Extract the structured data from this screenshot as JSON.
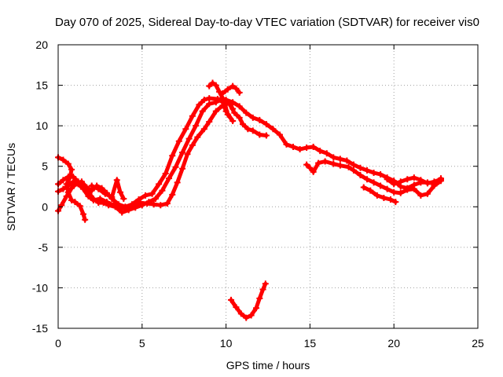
{
  "chart_data": {
    "type": "scatter",
    "title": "Day 070 of 2025, Sidereal Day-to-day VTEC variation (SDTVAR) for receiver vis0",
    "xlabel": "GPS time / hours",
    "ylabel": "SDTVAR / TECUs",
    "xlim": [
      0,
      25
    ],
    "ylim": [
      -15,
      20
    ],
    "xticks": [
      0,
      5,
      10,
      15,
      20,
      25
    ],
    "yticks": [
      -15,
      -10,
      -5,
      0,
      5,
      10,
      15,
      20
    ],
    "grid": true,
    "legend": "none",
    "marker": "plus",
    "color": "#ff0000",
    "series": [
      {
        "name": "trace-1",
        "points": [
          [
            0.0,
            6.1
          ],
          [
            0.3,
            5.8
          ],
          [
            0.6,
            5.3
          ],
          [
            0.8,
            4.6
          ],
          [
            0.7,
            3.6
          ],
          [
            0.5,
            2.8
          ],
          [
            0.6,
            1.8
          ],
          [
            0.8,
            0.8
          ],
          [
            1.0,
            0.6
          ],
          [
            1.3,
            0.1
          ],
          [
            1.5,
            -0.9
          ],
          [
            1.6,
            -1.6
          ]
        ]
      },
      {
        "name": "trace-2",
        "points": [
          [
            0.0,
            -0.5
          ],
          [
            0.2,
            0.2
          ],
          [
            0.5,
            1.3
          ],
          [
            0.8,
            2.3
          ],
          [
            1.1,
            2.9
          ],
          [
            1.4,
            3.1
          ],
          [
            1.7,
            2.4
          ],
          [
            2.0,
            2.0
          ],
          [
            2.3,
            2.6
          ],
          [
            2.6,
            2.3
          ],
          [
            2.9,
            1.7
          ],
          [
            3.2,
            1.0
          ],
          [
            3.6,
            0.3
          ],
          [
            4.0,
            0.0
          ],
          [
            4.4,
            0.3
          ],
          [
            4.8,
            0.9
          ],
          [
            5.2,
            1.4
          ],
          [
            5.6,
            1.6
          ],
          [
            6.0,
            2.8
          ],
          [
            6.4,
            4.1
          ],
          [
            6.8,
            6.3
          ],
          [
            7.2,
            8.1
          ],
          [
            7.6,
            9.6
          ],
          [
            8.0,
            11.2
          ],
          [
            8.4,
            12.6
          ],
          [
            8.7,
            13.2
          ],
          [
            9.0,
            13.4
          ],
          [
            9.5,
            13.3
          ],
          [
            10.0,
            13.2
          ],
          [
            10.4,
            12.9
          ],
          [
            10.8,
            12.4
          ],
          [
            11.2,
            11.6
          ],
          [
            11.6,
            11.0
          ],
          [
            12.0,
            10.7
          ],
          [
            12.4,
            10.2
          ],
          [
            12.8,
            9.6
          ],
          [
            13.2,
            8.9
          ],
          [
            13.6,
            7.7
          ],
          [
            14.0,
            7.4
          ],
          [
            14.4,
            7.1
          ],
          [
            14.8,
            7.3
          ],
          [
            15.2,
            7.4
          ],
          [
            15.6,
            6.9
          ],
          [
            16.0,
            6.6
          ],
          [
            16.4,
            6.1
          ],
          [
            16.8,
            5.9
          ],
          [
            17.2,
            5.7
          ],
          [
            17.6,
            5.2
          ],
          [
            18.0,
            4.8
          ],
          [
            18.4,
            4.5
          ],
          [
            18.8,
            4.2
          ],
          [
            19.2,
            4.0
          ],
          [
            19.6,
            3.6
          ],
          [
            20.0,
            3.2
          ],
          [
            20.4,
            2.5
          ],
          [
            20.8,
            2.3
          ],
          [
            21.2,
            2.7
          ],
          [
            21.6,
            3.0
          ],
          [
            22.0,
            3.0
          ],
          [
            22.4,
            2.9
          ],
          [
            22.8,
            3.5
          ]
        ]
      },
      {
        "name": "trace-3",
        "points": [
          [
            0.0,
            2.8
          ],
          [
            0.3,
            3.3
          ],
          [
            0.6,
            3.7
          ],
          [
            0.9,
            3.7
          ],
          [
            1.2,
            3.1
          ],
          [
            1.5,
            2.5
          ],
          [
            1.8,
            1.8
          ],
          [
            2.1,
            1.0
          ],
          [
            2.4,
            0.5
          ],
          [
            2.7,
            0.5
          ],
          [
            3.0,
            0.2
          ],
          [
            3.4,
            0.0
          ],
          [
            3.8,
            -0.7
          ],
          [
            4.2,
            -0.4
          ],
          [
            4.6,
            -0.1
          ],
          [
            5.0,
            0.2
          ],
          [
            5.4,
            0.6
          ],
          [
            5.8,
            1.0
          ],
          [
            6.2,
            2.0
          ],
          [
            6.6,
            3.5
          ],
          [
            7.0,
            4.9
          ],
          [
            7.4,
            6.7
          ],
          [
            7.8,
            8.4
          ],
          [
            8.2,
            10.0
          ],
          [
            8.6,
            11.8
          ],
          [
            9.0,
            12.7
          ],
          [
            9.4,
            12.9
          ],
          [
            9.8,
            13.4
          ],
          [
            10.2,
            12.7
          ],
          [
            10.5,
            11.6
          ],
          [
            10.8,
            11.0
          ],
          [
            11.0,
            10.2
          ],
          [
            11.3,
            9.6
          ],
          [
            11.6,
            9.4
          ],
          [
            12.0,
            8.9
          ],
          [
            12.4,
            8.8
          ]
        ]
      },
      {
        "name": "trace-4",
        "points": [
          [
            0.0,
            1.9
          ],
          [
            0.3,
            2.2
          ],
          [
            0.6,
            2.6
          ],
          [
            0.9,
            3.1
          ],
          [
            1.2,
            2.8
          ],
          [
            1.5,
            2.2
          ],
          [
            1.8,
            1.3
          ],
          [
            2.1,
            0.8
          ],
          [
            2.5,
            1.0
          ],
          [
            2.9,
            0.6
          ],
          [
            3.3,
            0.2
          ],
          [
            3.7,
            -0.2
          ],
          [
            4.1,
            -0.1
          ],
          [
            4.5,
            0.2
          ],
          [
            4.9,
            0.5
          ],
          [
            5.3,
            0.4
          ],
          [
            5.7,
            0.3
          ],
          [
            6.1,
            0.2
          ],
          [
            6.5,
            0.4
          ],
          [
            6.8,
            1.5
          ],
          [
            7.1,
            3.0
          ],
          [
            7.4,
            4.7
          ],
          [
            7.7,
            6.5
          ],
          [
            8.0,
            7.6
          ],
          [
            8.3,
            8.6
          ],
          [
            8.7,
            9.6
          ],
          [
            9.0,
            10.5
          ],
          [
            9.4,
            11.8
          ],
          [
            9.8,
            12.5
          ],
          [
            10.2,
            12.8
          ],
          [
            10.4,
            12.1
          ]
        ]
      },
      {
        "name": "trace-5",
        "points": [
          [
            9.0,
            14.9
          ],
          [
            9.2,
            15.3
          ],
          [
            9.4,
            15.0
          ],
          [
            9.6,
            14.2
          ],
          [
            9.9,
            13.0
          ],
          [
            10.1,
            11.4
          ],
          [
            10.4,
            10.6
          ],
          [
            10.0,
            11.8
          ],
          [
            9.8,
            12.9
          ]
        ]
      },
      {
        "name": "trace-6",
        "points": [
          [
            9.8,
            14.0
          ],
          [
            10.1,
            14.5
          ],
          [
            10.4,
            14.9
          ],
          [
            10.6,
            14.6
          ],
          [
            10.8,
            14.1
          ]
        ]
      },
      {
        "name": "trace-7",
        "points": [
          [
            14.8,
            5.2
          ],
          [
            15.0,
            4.8
          ],
          [
            15.2,
            4.3
          ],
          [
            15.5,
            5.4
          ],
          [
            15.9,
            5.6
          ],
          [
            16.4,
            5.3
          ],
          [
            16.8,
            5.1
          ],
          [
            17.3,
            4.9
          ],
          [
            17.6,
            4.5
          ],
          [
            18.0,
            3.9
          ],
          [
            18.4,
            3.4
          ],
          [
            18.8,
            3.0
          ],
          [
            19.2,
            2.6
          ],
          [
            19.6,
            2.2
          ],
          [
            20.0,
            1.8
          ],
          [
            20.4,
            1.7
          ],
          [
            20.8,
            2.1
          ],
          [
            21.2,
            2.2
          ],
          [
            21.6,
            1.4
          ],
          [
            22.0,
            1.6
          ],
          [
            22.4,
            2.6
          ],
          [
            22.8,
            3.2
          ]
        ]
      },
      {
        "name": "trace-8",
        "points": [
          [
            18.2,
            2.4
          ],
          [
            18.6,
            2.0
          ],
          [
            19.0,
            1.4
          ],
          [
            19.4,
            1.1
          ],
          [
            19.8,
            0.9
          ],
          [
            20.1,
            0.6
          ]
        ]
      },
      {
        "name": "trace-9",
        "points": [
          [
            19.6,
            3.4
          ],
          [
            20.0,
            2.8
          ],
          [
            20.4,
            3.1
          ],
          [
            20.8,
            3.4
          ],
          [
            21.2,
            3.6
          ],
          [
            21.6,
            3.3
          ],
          [
            22.0,
            2.9
          ],
          [
            22.4,
            3.1
          ],
          [
            22.8,
            3.4
          ]
        ]
      },
      {
        "name": "trace-10",
        "points": [
          [
            2.0,
            2.6
          ],
          [
            2.4,
            2.2
          ],
          [
            2.8,
            1.6
          ],
          [
            3.2,
            1.2
          ],
          [
            3.5,
            3.3
          ],
          [
            3.7,
            1.8
          ],
          [
            3.9,
            1.0
          ]
        ]
      },
      {
        "name": "trace-11",
        "points": [
          [
            10.3,
            -11.5
          ],
          [
            10.6,
            -12.4
          ],
          [
            10.9,
            -13.2
          ],
          [
            11.2,
            -13.7
          ],
          [
            11.5,
            -13.4
          ],
          [
            11.8,
            -12.5
          ],
          [
            12.0,
            -11.3
          ],
          [
            12.2,
            -10.2
          ],
          [
            12.35,
            -9.5
          ]
        ]
      }
    ]
  }
}
